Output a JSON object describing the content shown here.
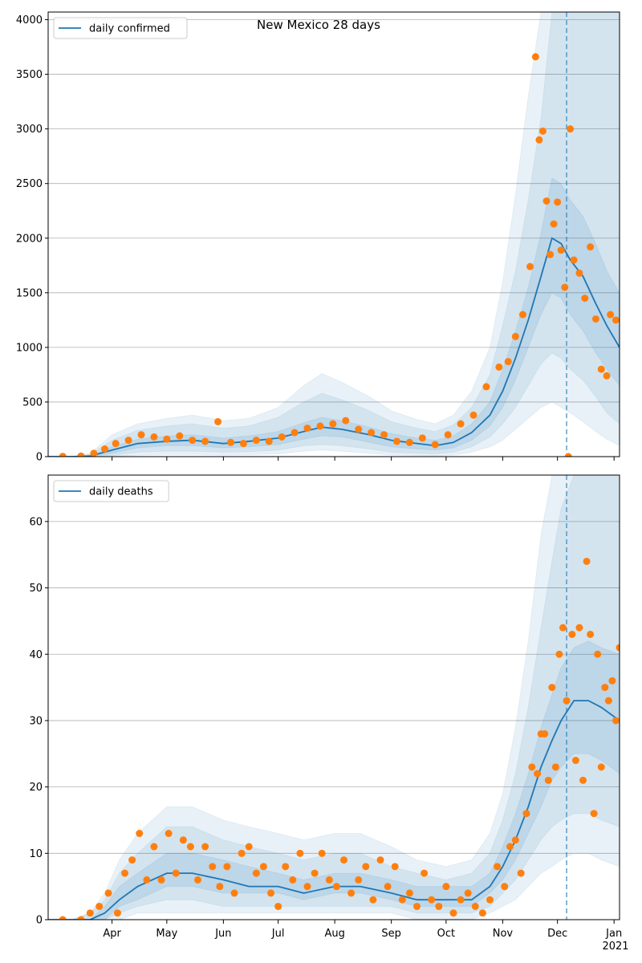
{
  "figure": {
    "title": "New Mexico 28 days",
    "x_year_label": "2021",
    "x_tick_labels": [
      "Apr",
      "May",
      "Jun",
      "Jul",
      "Aug",
      "Sep",
      "Oct",
      "Nov",
      "Dec",
      "Jan"
    ]
  },
  "colors": {
    "line": "#1f77b4",
    "points": "#ff7f0e",
    "band": "#1f77b4",
    "grid": "#b0b0b0"
  },
  "chart_data": [
    {
      "type": "line",
      "x_type": "date",
      "xlim": [
        "2020-02-26",
        "2021-01-04"
      ],
      "ylim": [
        0,
        4070
      ],
      "yticks": [
        0,
        500,
        1000,
        1500,
        2000,
        2500,
        3000,
        3500,
        4000
      ],
      "grid": "horizontal",
      "legend": "top-left",
      "vline": "2020-12-06",
      "series": [
        {
          "name": "daily confirmed",
          "kind": "line",
          "x": [
            "2020-02-26",
            "2020-03-10",
            "2020-03-20",
            "2020-04-01",
            "2020-04-15",
            "2020-05-01",
            "2020-05-15",
            "2020-06-01",
            "2020-06-15",
            "2020-07-01",
            "2020-07-15",
            "2020-07-25",
            "2020-08-05",
            "2020-08-20",
            "2020-09-01",
            "2020-09-15",
            "2020-09-25",
            "2020-10-05",
            "2020-10-15",
            "2020-10-25",
            "2020-11-01",
            "2020-11-08",
            "2020-11-15",
            "2020-11-22",
            "2020-11-28",
            "2020-12-03",
            "2020-12-08",
            "2020-12-15",
            "2020-12-22",
            "2020-12-28",
            "2021-01-04"
          ],
          "y": [
            0,
            0,
            5,
            60,
            120,
            140,
            150,
            120,
            140,
            170,
            230,
            270,
            250,
            200,
            150,
            120,
            100,
            130,
            220,
            380,
            600,
            900,
            1250,
            1650,
            2000,
            1950,
            1800,
            1650,
            1400,
            1200,
            1000
          ],
          "band_inner": [
            0,
            0,
            0,
            30,
            80,
            100,
            100,
            80,
            90,
            110,
            160,
            190,
            180,
            130,
            90,
            70,
            60,
            80,
            150,
            280,
            450,
            700,
            1000,
            1300,
            1500,
            1450,
            1300,
            1150,
            950,
            800,
            650
          ],
          "band_inner_hi": [
            0,
            0,
            10,
            90,
            160,
            190,
            200,
            170,
            190,
            230,
            310,
            360,
            330,
            270,
            210,
            170,
            150,
            190,
            300,
            500,
            800,
            1150,
            1550,
            2050,
            2550,
            2500,
            2350,
            2200,
            1950,
            1700,
            1500
          ],
          "band_outer": [
            0,
            0,
            0,
            10,
            40,
            50,
            50,
            40,
            45,
            60,
            100,
            110,
            100,
            70,
            40,
            30,
            25,
            40,
            90,
            180,
            300,
            450,
            650,
            850,
            950,
            900,
            800,
            700,
            550,
            400,
            300
          ],
          "band_outer_hi": [
            0,
            0,
            20,
            150,
            240,
            280,
            300,
            260,
            280,
            360,
            500,
            580,
            520,
            420,
            320,
            260,
            230,
            290,
            450,
            750,
            1200,
            1700,
            2350,
            3100,
            4070,
            4070,
            4070,
            4070,
            4070,
            4070,
            4070
          ],
          "band_far_hi": [
            0,
            0,
            30,
            200,
            300,
            350,
            380,
            330,
            350,
            450,
            650,
            760,
            680,
            550,
            420,
            340,
            300,
            380,
            600,
            1000,
            1600,
            2400,
            3300,
            4070,
            4070,
            4070,
            4070,
            4070,
            4070,
            4070,
            4070
          ],
          "band_far_lo": [
            0,
            0,
            0,
            0,
            15,
            20,
            20,
            15,
            18,
            25,
            50,
            60,
            50,
            30,
            15,
            10,
            8,
            15,
            40,
            90,
            150,
            250,
            350,
            450,
            500,
            450,
            400,
            320,
            230,
            160,
            100
          ]
        },
        {
          "name": "",
          "kind": "scatter",
          "x": [
            "2020-03-05",
            "2020-03-15",
            "2020-03-22",
            "2020-03-28",
            "2020-04-03",
            "2020-04-10",
            "2020-04-17",
            "2020-04-24",
            "2020-05-01",
            "2020-05-08",
            "2020-05-15",
            "2020-05-22",
            "2020-05-29",
            "2020-06-05",
            "2020-06-12",
            "2020-06-19",
            "2020-06-26",
            "2020-07-03",
            "2020-07-10",
            "2020-07-17",
            "2020-07-24",
            "2020-07-31",
            "2020-08-07",
            "2020-08-14",
            "2020-08-21",
            "2020-08-28",
            "2020-09-04",
            "2020-09-11",
            "2020-09-18",
            "2020-09-25",
            "2020-10-02",
            "2020-10-09",
            "2020-10-16",
            "2020-10-23",
            "2020-10-30",
            "2020-11-04",
            "2020-11-08",
            "2020-11-12",
            "2020-11-16",
            "2020-11-19",
            "2020-11-21",
            "2020-11-23",
            "2020-11-25",
            "2020-11-27",
            "2020-11-29",
            "2020-12-01",
            "2020-12-03",
            "2020-12-05",
            "2020-12-08",
            "2020-12-10",
            "2020-12-13",
            "2020-12-16",
            "2020-12-19",
            "2020-12-22",
            "2020-12-25",
            "2020-12-28",
            "2020-12-30",
            "2021-01-02",
            "2020-12-07"
          ],
          "y": [
            2,
            5,
            30,
            70,
            120,
            150,
            200,
            180,
            160,
            190,
            150,
            140,
            320,
            130,
            120,
            150,
            140,
            180,
            220,
            260,
            280,
            300,
            330,
            250,
            220,
            200,
            140,
            130,
            170,
            110,
            200,
            300,
            380,
            640,
            820,
            870,
            1100,
            1300,
            1740,
            3660,
            2900,
            2980,
            2340,
            1850,
            2130,
            2330,
            1890,
            1550,
            3000,
            1800,
            1680,
            1450,
            1920,
            1260,
            800,
            740,
            1300,
            1250,
            0
          ]
        }
      ]
    },
    {
      "type": "line",
      "x_type": "date",
      "xlim": [
        "2020-02-26",
        "2021-01-04"
      ],
      "ylim": [
        0,
        67
      ],
      "yticks": [
        0,
        10,
        20,
        30,
        40,
        50,
        60
      ],
      "grid": "horizontal",
      "legend": "top-left",
      "vline": "2020-12-06",
      "series": [
        {
          "name": "daily deaths",
          "kind": "line",
          "x": [
            "2020-02-26",
            "2020-03-10",
            "2020-03-20",
            "2020-03-28",
            "2020-04-05",
            "2020-04-15",
            "2020-05-01",
            "2020-05-15",
            "2020-06-01",
            "2020-06-15",
            "2020-07-01",
            "2020-07-15",
            "2020-08-01",
            "2020-08-15",
            "2020-09-01",
            "2020-09-15",
            "2020-10-01",
            "2020-10-15",
            "2020-10-25",
            "2020-11-01",
            "2020-11-08",
            "2020-11-15",
            "2020-11-22",
            "2020-11-28",
            "2020-12-03",
            "2020-12-10",
            "2020-12-18",
            "2020-12-25",
            "2021-01-04"
          ],
          "y": [
            0,
            0,
            0,
            1,
            3,
            5,
            7,
            7,
            6,
            5,
            5,
            4,
            5,
            5,
            4,
            3,
            3,
            3,
            5,
            8,
            12,
            17,
            23,
            27,
            30,
            33,
            33,
            32,
            30
          ],
          "band_inner": [
            0,
            0,
            0,
            0,
            2,
            3,
            5,
            5,
            4,
            4,
            4,
            3,
            4,
            4,
            3,
            2,
            2,
            2,
            4,
            6,
            9,
            13,
            17,
            21,
            23,
            25,
            25,
            24,
            22
          ],
          "band_inner_hi": [
            0,
            0,
            0,
            2,
            5,
            7,
            10,
            10,
            9,
            8,
            7,
            6,
            7,
            7,
            6,
            5,
            5,
            5,
            7,
            11,
            16,
            22,
            29,
            34,
            38,
            41,
            42,
            41,
            40
          ],
          "band_outer": [
            0,
            0,
            0,
            0,
            1,
            2,
            3,
            3,
            2,
            2,
            2,
            2,
            2,
            2,
            2,
            1,
            1,
            1,
            2,
            4,
            6,
            9,
            12,
            14,
            15,
            16,
            16,
            15,
            14
          ],
          "band_outer_hi": [
            0,
            0,
            1,
            3,
            7,
            10,
            14,
            14,
            12,
            11,
            10,
            9,
            10,
            10,
            8,
            7,
            6,
            7,
            10,
            15,
            22,
            32,
            44,
            54,
            62,
            67,
            67,
            67,
            67
          ],
          "band_far_hi": [
            0,
            0,
            1,
            4,
            9,
            13,
            17,
            17,
            15,
            14,
            13,
            12,
            13,
            13,
            11,
            9,
            8,
            9,
            13,
            19,
            29,
            42,
            58,
            67,
            67,
            67,
            67,
            67,
            67
          ],
          "band_far_lo": [
            0,
            0,
            0,
            0,
            0,
            1,
            1,
            1,
            1,
            1,
            1,
            1,
            1,
            1,
            1,
            0,
            0,
            0,
            1,
            2,
            3,
            5,
            7,
            8,
            9,
            10,
            10,
            9,
            8
          ]
        },
        {
          "name": "",
          "kind": "scatter",
          "x": [
            "2020-03-05",
            "2020-03-15",
            "2020-03-20",
            "2020-03-25",
            "2020-03-30",
            "2020-04-04",
            "2020-04-08",
            "2020-04-12",
            "2020-04-16",
            "2020-04-20",
            "2020-04-24",
            "2020-04-28",
            "2020-05-02",
            "2020-05-06",
            "2020-05-10",
            "2020-05-14",
            "2020-05-18",
            "2020-05-22",
            "2020-05-26",
            "2020-05-30",
            "2020-06-03",
            "2020-06-07",
            "2020-06-11",
            "2020-06-15",
            "2020-06-19",
            "2020-06-23",
            "2020-06-27",
            "2020-07-01",
            "2020-07-05",
            "2020-07-09",
            "2020-07-13",
            "2020-07-17",
            "2020-07-21",
            "2020-07-25",
            "2020-07-29",
            "2020-08-02",
            "2020-08-06",
            "2020-08-10",
            "2020-08-14",
            "2020-08-18",
            "2020-08-22",
            "2020-08-26",
            "2020-08-30",
            "2020-09-03",
            "2020-09-07",
            "2020-09-11",
            "2020-09-15",
            "2020-09-19",
            "2020-09-23",
            "2020-09-27",
            "2020-10-01",
            "2020-10-05",
            "2020-10-09",
            "2020-10-13",
            "2020-10-17",
            "2020-10-21",
            "2020-10-25",
            "2020-10-29",
            "2020-11-02",
            "2020-11-05",
            "2020-11-08",
            "2020-11-11",
            "2020-11-14",
            "2020-11-17",
            "2020-11-20",
            "2020-11-22",
            "2020-11-24",
            "2020-11-26",
            "2020-11-28",
            "2020-11-30",
            "2020-12-02",
            "2020-12-04",
            "2020-12-06",
            "2020-12-09",
            "2020-12-11",
            "2020-12-13",
            "2020-12-15",
            "2020-12-17",
            "2020-12-19",
            "2020-12-21",
            "2020-12-23",
            "2020-12-25",
            "2020-12-27",
            "2020-12-29",
            "2020-12-31",
            "2021-01-02",
            "2021-01-04"
          ],
          "y": [
            0,
            0,
            1,
            2,
            4,
            1,
            7,
            9,
            13,
            6,
            11,
            6,
            13,
            7,
            12,
            11,
            6,
            11,
            8,
            5,
            8,
            4,
            10,
            11,
            7,
            8,
            4,
            2,
            8,
            6,
            10,
            5,
            7,
            10,
            6,
            5,
            9,
            4,
            6,
            8,
            3,
            9,
            5,
            8,
            3,
            4,
            2,
            7,
            3,
            2,
            5,
            1,
            3,
            4,
            2,
            1,
            3,
            8,
            5,
            11,
            12,
            7,
            16,
            23,
            22,
            28,
            28,
            21,
            35,
            23,
            40,
            44,
            33,
            43,
            24,
            44,
            21,
            54,
            43,
            16,
            40,
            23,
            35,
            33,
            36,
            30,
            41
          ]
        }
      ]
    }
  ]
}
